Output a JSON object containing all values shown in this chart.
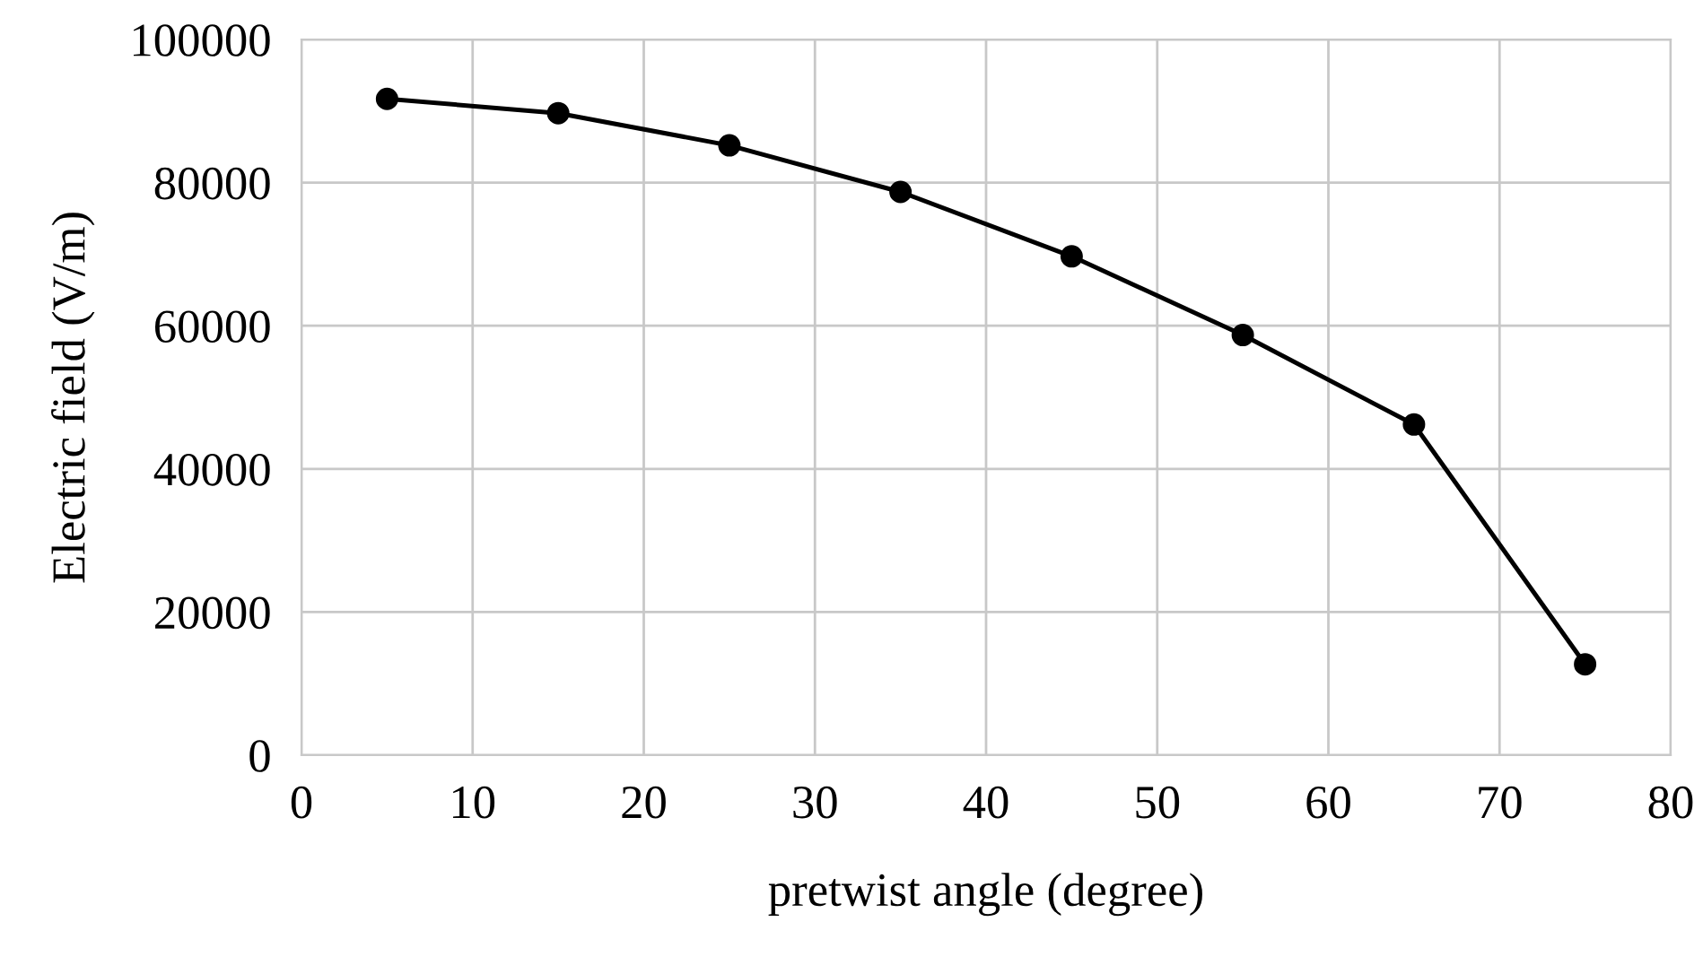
{
  "chart_data": {
    "type": "line",
    "xlabel": "pretwist angle (degree)",
    "ylabel": "Electric field (V/m)",
    "x": [
      5,
      15,
      25,
      35,
      45,
      55,
      65,
      75
    ],
    "series": [
      {
        "color": "#000000",
        "values": [
          91700,
          89700,
          85200,
          78700,
          69700,
          58700,
          46200,
          12700
        ]
      }
    ],
    "xlim": [
      0,
      80
    ],
    "xticks": [
      0,
      10,
      20,
      30,
      40,
      50,
      60,
      70,
      80
    ],
    "ylim": [
      0,
      100000
    ],
    "yticks": [
      0,
      20000,
      40000,
      60000,
      80000,
      100000
    ],
    "grid": true,
    "marker": "circle",
    "line_style": "solid",
    "legend": false
  }
}
